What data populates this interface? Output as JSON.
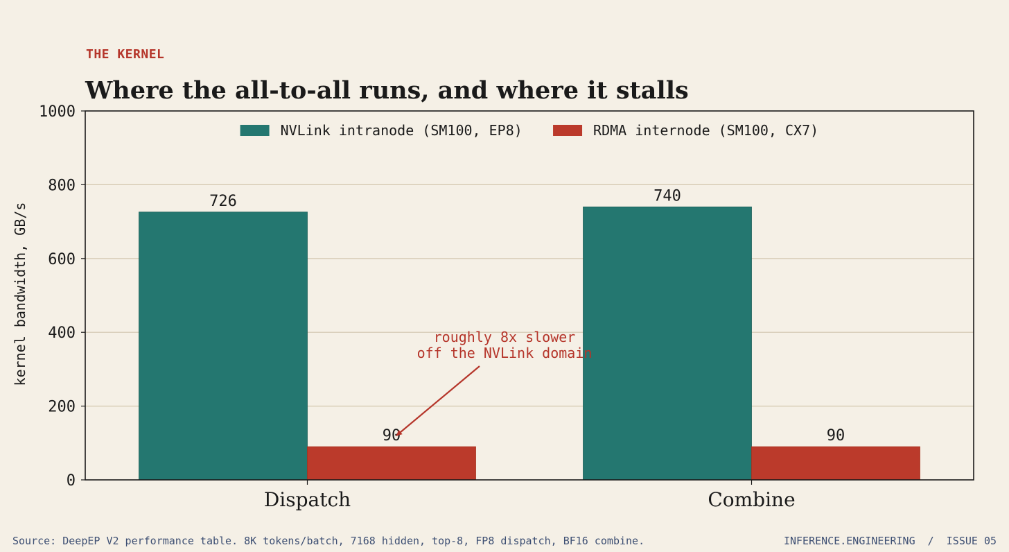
{
  "header": {
    "kicker": "THE KERNEL",
    "title": "Where the all-to-all runs, and where it stalls"
  },
  "footer": {
    "source": "Source: DeepEP V2 performance table. 8K tokens/batch, 7168 hidden, top-8, FP8 dispatch, BF16 combine.",
    "brand": "INFERENCE.ENGINEERING  /  ISSUE 05"
  },
  "chart_data": {
    "type": "bar",
    "categories": [
      "Dispatch",
      "Combine"
    ],
    "series": [
      {
        "name": "NVLink intranode (SM100, EP8)",
        "values": [
          726,
          740
        ],
        "color": "#247770"
      },
      {
        "name": "RDMA internode (SM100, CX7)",
        "values": [
          90,
          90
        ],
        "color": "#bb3a2b"
      }
    ],
    "xlabel": "",
    "ylabel": "kernel bandwidth, GB/s",
    "ylim": [
      0,
      1000
    ],
    "yticks": [
      0,
      200,
      400,
      600,
      800,
      1000
    ],
    "grid": "horizontal",
    "legend_position": "top-center",
    "annotation": {
      "lines": [
        "roughly 8x slower",
        "off the NVLink domain"
      ],
      "target_category": "Dispatch",
      "target_series": 1,
      "color": "#b5352a"
    }
  }
}
